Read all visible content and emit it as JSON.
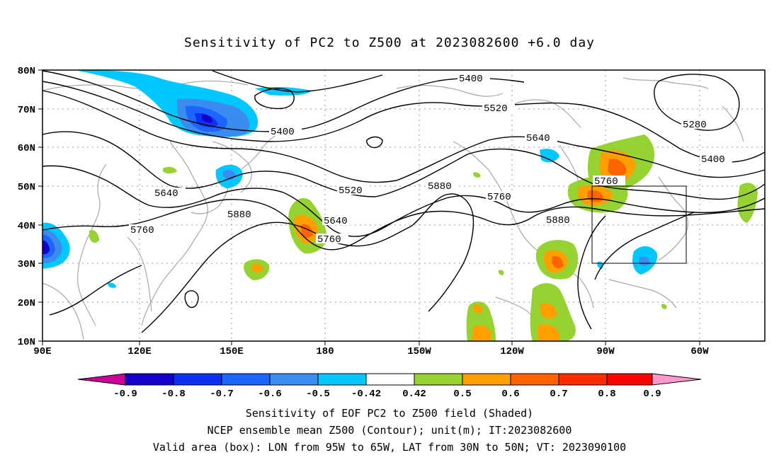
{
  "title": "Sensitivity of PC2 to Z500 at 2023082600 +6.0 day",
  "map": {
    "lat_labels": [
      "80N",
      "70N",
      "60N",
      "50N",
      "40N",
      "30N",
      "20N",
      "10N"
    ],
    "lon_labels": [
      "90E",
      "120E",
      "150E",
      "180",
      "150W",
      "120W",
      "90W",
      "60W"
    ],
    "contour_labels": [
      "5400",
      "5520",
      "5640",
      "5760",
      "5880",
      "5280",
      "5400",
      "5640",
      "5760",
      "5520",
      "5760",
      "5880",
      "5880",
      "5760",
      "5400"
    ],
    "box": {
      "lon_west": "95W",
      "lon_east": "65W",
      "lat_south": "30N",
      "lat_north": "50N"
    }
  },
  "colorbar": {
    "labels": [
      "-0.9",
      "-0.8",
      "-0.7",
      "-0.6",
      "-0.5",
      "-0.42",
      "0.42",
      "0.5",
      "0.6",
      "0.7",
      "0.8",
      "0.9"
    ],
    "colors": [
      "#cc0099",
      "#1400c8",
      "#0a32f0",
      "#1e64ff",
      "#3c8cf0",
      "#00c8ff",
      "#ffffff",
      "#96d232",
      "#ffa000",
      "#ff6400",
      "#ff2d00",
      "#ff0000",
      "#ff99cc"
    ]
  },
  "footer": {
    "line1": "Sensitivity of EOF PC2 to Z500 field (Shaded)",
    "line2": "NCEP ensemble mean Z500 (Contour); unit(m); IT:2023082600",
    "line3": "Valid area (box): LON from 95W to 65W, LAT from 30N to 50N; VT: 2023090100"
  }
}
